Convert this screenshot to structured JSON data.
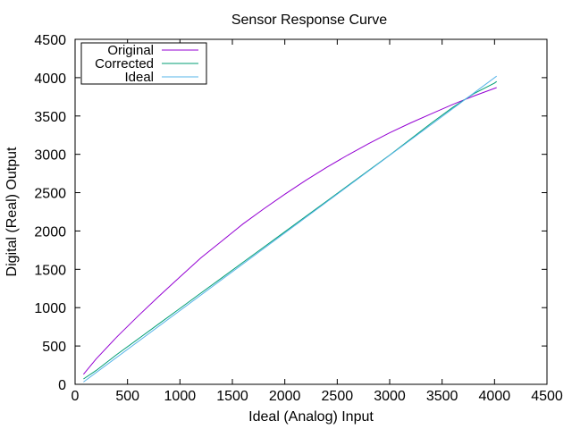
{
  "chart_data": {
    "type": "line",
    "title": "Sensor Response Curve",
    "xlabel": "Ideal (Analog) Input",
    "ylabel": "Digital (Real) Output",
    "xlim": [
      0,
      4500
    ],
    "ylim": [
      0,
      4500
    ],
    "xticks": [
      0,
      500,
      1000,
      1500,
      2000,
      2500,
      3000,
      3500,
      4000,
      4500
    ],
    "yticks": [
      0,
      500,
      1000,
      1500,
      2000,
      2500,
      3000,
      3500,
      4000,
      4500
    ],
    "grid": false,
    "legend_position": "top-left",
    "series": [
      {
        "name": "Original",
        "color": "#9400d3",
        "x": [
          80,
          200,
          400,
          600,
          800,
          1000,
          1200,
          1400,
          1600,
          1800,
          2000,
          2200,
          2400,
          2600,
          2800,
          3000,
          3200,
          3400,
          3600,
          3800,
          4000,
          4020
        ],
        "y": [
          130,
          330,
          620,
          890,
          1150,
          1400,
          1650,
          1870,
          2090,
          2290,
          2480,
          2660,
          2830,
          2990,
          3140,
          3280,
          3410,
          3530,
          3650,
          3760,
          3860,
          3870
        ]
      },
      {
        "name": "Corrected",
        "color": "#009e73",
        "x": [
          80,
          200,
          400,
          600,
          800,
          1000,
          1200,
          1400,
          1600,
          1800,
          2000,
          2200,
          2400,
          2600,
          2800,
          3000,
          3200,
          3400,
          3600,
          3800,
          4000,
          4020
        ],
        "y": [
          70,
          180,
          390,
          590,
          790,
          990,
          1190,
          1390,
          1590,
          1790,
          1990,
          2190,
          2390,
          2590,
          2790,
          2990,
          3200,
          3410,
          3610,
          3790,
          3930,
          3950
        ]
      },
      {
        "name": "Ideal",
        "color": "#56b4e9",
        "x": [
          80,
          4020
        ],
        "y": [
          30,
          4020
        ]
      }
    ]
  }
}
